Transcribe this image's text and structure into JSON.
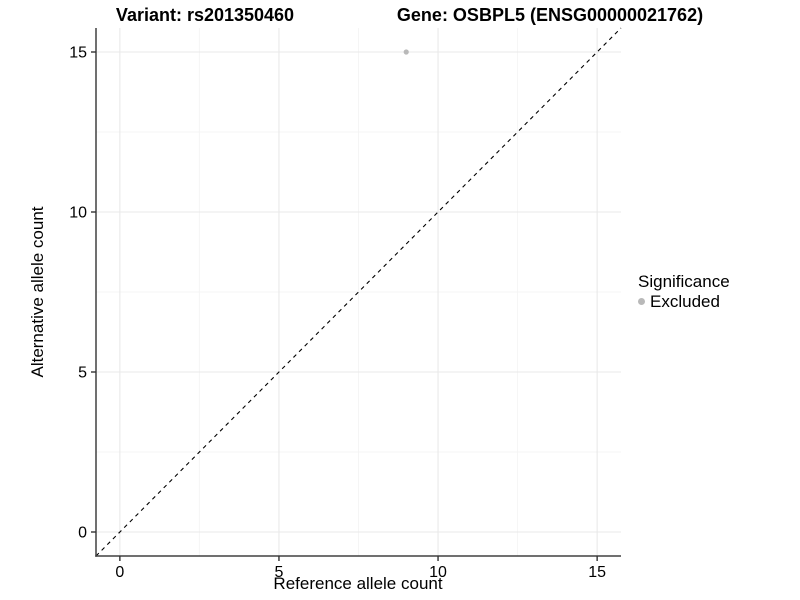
{
  "chart_data": {
    "type": "scatter",
    "titles": {
      "variant": "Variant: rs201350460",
      "gene": "Gene: OSBPL5 (ENSG00000021762)"
    },
    "xlabel": "Reference allele count",
    "ylabel": "Alternative allele count",
    "xlim": [
      -0.75,
      15.75
    ],
    "ylim": [
      -0.75,
      15.75
    ],
    "x_ticks": [
      0,
      5,
      10,
      15
    ],
    "y_ticks": [
      0,
      5,
      10,
      15
    ],
    "x_minor_ticks": [
      2.5,
      7.5,
      12.5
    ],
    "y_minor_ticks": [
      2.5,
      7.5,
      12.5
    ],
    "grid": true,
    "points": [
      {
        "x": 9,
        "y": 15,
        "series": "Excluded"
      }
    ],
    "identity_line": {
      "style": "dashed",
      "from": [
        -0.75,
        -0.75
      ],
      "to": [
        15.75,
        15.75
      ]
    },
    "legend": {
      "title": "Significance",
      "position": "right",
      "items": [
        {
          "label": "Excluded",
          "color": "#b9b9b9"
        }
      ]
    },
    "colors": {
      "background": "#ffffff",
      "point": "#b9b9b9",
      "grid_major": "#e9e9e9",
      "grid_minor": "#f4f4f4",
      "axis_line": "#404040",
      "tick_mark": "#333333",
      "dashed_line": "#000000",
      "text": "#000000"
    }
  }
}
